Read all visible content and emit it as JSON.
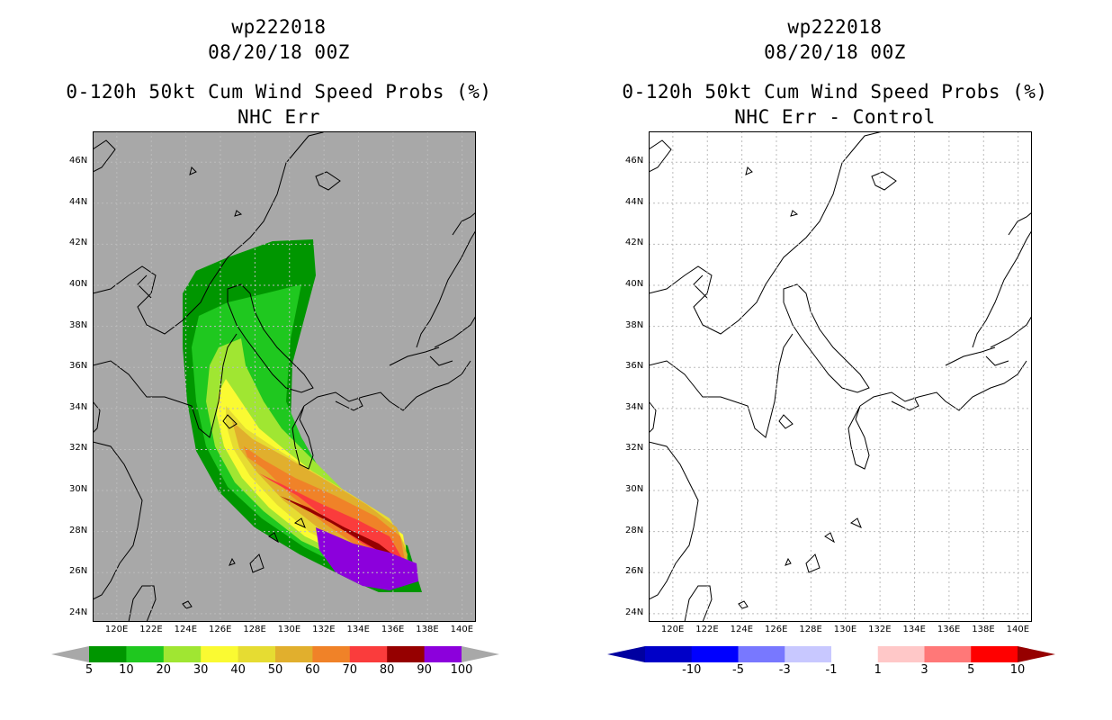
{
  "panels": [
    {
      "id": "left",
      "title_lines": [
        "wp222018",
        "08/20/18 00Z",
        "0-120h 50kt Cum Wind Speed Probs (%)",
        "NHC Err"
      ],
      "background": "#a8a8a8",
      "colorbar": {
        "labels": [
          "5",
          "10",
          "20",
          "30",
          "40",
          "50",
          "60",
          "70",
          "80",
          "90",
          "100"
        ],
        "colors": [
          "#009600",
          "#1fc81f",
          "#a0e632",
          "#fafa32",
          "#e6dc32",
          "#e1af2d",
          "#f08228",
          "#fa3c3c",
          "#960000",
          "#8c00dc"
        ],
        "end_color": "#a8a8a8"
      }
    },
    {
      "id": "right",
      "title_lines": [
        "wp222018",
        "08/20/18 00Z",
        "0-120h 50kt Cum Wind Speed Probs (%)",
        "NHC Err - Control"
      ],
      "background": "#ffffff",
      "colorbar": {
        "labels": [
          "-10",
          "-5",
          "-3",
          "-1",
          "1",
          "3",
          "5",
          "10"
        ],
        "colors": [
          "#0000c8",
          "#0000ff",
          "#7878ff",
          "#c8c8ff",
          "#ffffff",
          "#ffc8c8",
          "#ff7878",
          "#ff0000"
        ],
        "start_color": "#0000a0",
        "end_color": "#960000"
      }
    }
  ],
  "axes": {
    "lon_labels": [
      "120E",
      "122E",
      "124E",
      "126E",
      "128E",
      "130E",
      "132E",
      "134E",
      "136E",
      "138E",
      "140E"
    ],
    "lat_labels": [
      "24N",
      "26N",
      "28N",
      "30N",
      "32N",
      "34N",
      "36N",
      "38N",
      "40N",
      "42N",
      "44N",
      "46N"
    ],
    "lon_values": [
      120,
      122,
      124,
      126,
      128,
      130,
      132,
      134,
      136,
      138,
      140
    ],
    "lat_values": [
      24,
      26,
      28,
      30,
      32,
      34,
      36,
      38,
      40,
      42,
      44,
      46
    ],
    "lon_range": [
      118.6,
      140.8
    ],
    "lat_range": [
      23.6,
      47.5
    ]
  }
}
